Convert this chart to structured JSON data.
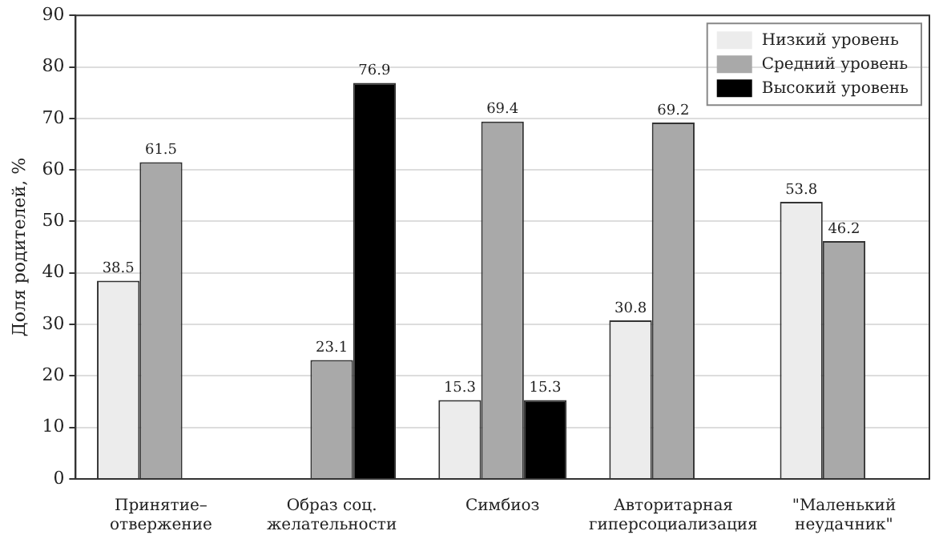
{
  "chart_data": {
    "type": "bar",
    "ylabel": "Доля родителей, %",
    "categories": [
      "Принятие–\nотвержение",
      "Образ соц.\nжелательности",
      "Симбиоз",
      "Авторитарная\nгиперсоциализация",
      "\"Маленький\nнеудачник\""
    ],
    "series": [
      {
        "name": "Низкий уровень",
        "color": "#ececec",
        "values": [
          38.5,
          null,
          15.3,
          30.8,
          53.8
        ]
      },
      {
        "name": "Средний уровень",
        "color": "#a9a9a9",
        "values": [
          61.5,
          23.1,
          69.4,
          69.2,
          46.2
        ]
      },
      {
        "name": "Высокий уровень",
        "color": "#000000",
        "values": [
          null,
          76.9,
          15.3,
          null,
          null
        ]
      }
    ],
    "ylim": [
      0,
      90
    ],
    "yticks": [
      0,
      10,
      20,
      30,
      40,
      50,
      60,
      70,
      80,
      90
    ],
    "grid": "y",
    "legend": "top right",
    "data_labels": true
  }
}
